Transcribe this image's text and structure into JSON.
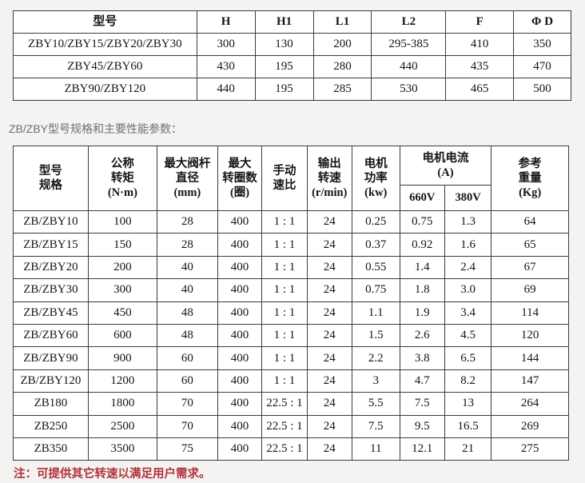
{
  "page": {
    "section_heading": "ZB/ZBY型号规格和主要性能参数：",
    "note": "注：可提供其它转速以满足用户需求。"
  },
  "colors": {
    "page_bg": "#f4f3f1",
    "table_bg": "#ffffff",
    "border": "#3c3c3c",
    "text": "#141414",
    "heading_gray": "#707070",
    "note_red": "#b0313a"
  },
  "dimension_table": {
    "headers": [
      "型号",
      "H",
      "H1",
      "L1",
      "L2",
      "F",
      "Φ D"
    ],
    "rows": [
      [
        "ZBY10/ZBY15/ZBY20/ZBY30",
        "300",
        "130",
        "200",
        "295-385",
        "410",
        "350"
      ],
      [
        "ZBY45/ZBY60",
        "430",
        "195",
        "280",
        "440",
        "435",
        "470"
      ],
      [
        "ZBY90/ZBY120",
        "440",
        "195",
        "285",
        "530",
        "465",
        "500"
      ]
    ]
  },
  "performance_table": {
    "headers": {
      "model": "型号\n规格",
      "torque": "公称\n转矩\n(N·m)",
      "stem_diameter": "最大阀杆\n直径\n(mm)",
      "max_turns": "最大\n转圈数\n(圈)",
      "manual_ratio": "手动\n速比",
      "output_speed": "输出\n转速\n(r/min)",
      "motor_power": "电机\n功率\n(kw)",
      "motor_current_group": "电机电流\n(A)",
      "current_660v": "660V",
      "current_380v": "380V",
      "weight": "参考\n重量\n(Kg)"
    },
    "rows": [
      [
        "ZB/ZBY10",
        "100",
        "28",
        "400",
        "1 : 1",
        "24",
        "0.25",
        "0.75",
        "1.3",
        "64"
      ],
      [
        "ZB/ZBY15",
        "150",
        "28",
        "400",
        "1 : 1",
        "24",
        "0.37",
        "0.92",
        "1.6",
        "65"
      ],
      [
        "ZB/ZBY20",
        "200",
        "40",
        "400",
        "1 : 1",
        "24",
        "0.55",
        "1.4",
        "2.4",
        "67"
      ],
      [
        "ZB/ZBY30",
        "300",
        "40",
        "400",
        "1 : 1",
        "24",
        "0.75",
        "1.8",
        "3.0",
        "69"
      ],
      [
        "ZB/ZBY45",
        "450",
        "48",
        "400",
        "1 : 1",
        "24",
        "1.1",
        "1.9",
        "3.4",
        "114"
      ],
      [
        "ZB/ZBY60",
        "600",
        "48",
        "400",
        "1 : 1",
        "24",
        "1.5",
        "2.6",
        "4.5",
        "120"
      ],
      [
        "ZB/ZBY90",
        "900",
        "60",
        "400",
        "1 : 1",
        "24",
        "2.2",
        "3.8",
        "6.5",
        "144"
      ],
      [
        "ZB/ZBY120",
        "1200",
        "60",
        "400",
        "1 : 1",
        "24",
        "3",
        "4.7",
        "8.2",
        "147"
      ],
      [
        "ZB180",
        "1800",
        "70",
        "400",
        "22.5 : 1",
        "24",
        "5.5",
        "7.5",
        "13",
        "264"
      ],
      [
        "ZB250",
        "2500",
        "70",
        "400",
        "22.5 : 1",
        "24",
        "7.5",
        "9.5",
        "16.5",
        "269"
      ],
      [
        "ZB350",
        "3500",
        "75",
        "400",
        "22.5 : 1",
        "24",
        "11",
        "12.1",
        "21",
        "275"
      ]
    ]
  }
}
